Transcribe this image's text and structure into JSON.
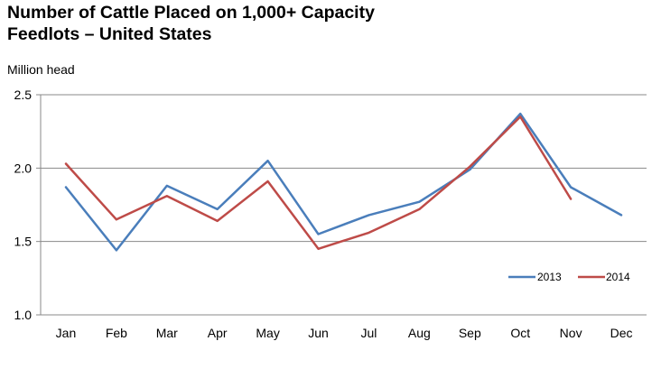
{
  "chart_data": {
    "type": "line",
    "title_line1": "Number of Cattle Placed on 1,000+ Capacity",
    "title_line2": "Feedlots – United States",
    "ylabel": "Million head",
    "xlabel": "",
    "categories": [
      "Jan",
      "Feb",
      "Mar",
      "Apr",
      "May",
      "Jun",
      "Jul",
      "Aug",
      "Sep",
      "Oct",
      "Nov",
      "Dec"
    ],
    "ylim": [
      1.0,
      2.5
    ],
    "yticks": [
      "1.0",
      "1.5",
      "2.0",
      "2.5"
    ],
    "grid": true,
    "legend_position": "bottom-right",
    "series": [
      {
        "name": "2013",
        "color": "#4a7ebb",
        "values": [
          1.87,
          1.44,
          1.88,
          1.72,
          2.05,
          1.55,
          1.68,
          1.77,
          1.99,
          2.37,
          1.87,
          1.68
        ]
      },
      {
        "name": "2014",
        "color": "#be4b48",
        "values": [
          2.03,
          1.65,
          1.81,
          1.64,
          1.91,
          1.45,
          1.56,
          1.72,
          2.01,
          2.35,
          1.79,
          null
        ]
      }
    ]
  }
}
